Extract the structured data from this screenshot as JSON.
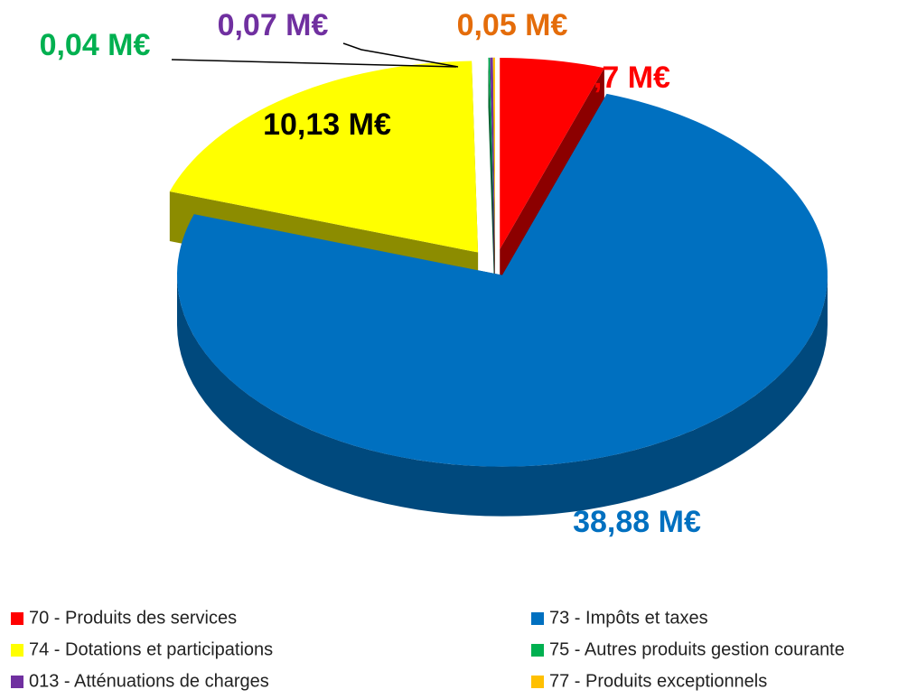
{
  "chart_data": {
    "type": "pie",
    "categories": [
      "70 - Produits des services",
      "73 - Impôts et taxes",
      "74 - Dotations et participations",
      "75 - Autres produits gestion courante",
      "013 - Atténuations de charges",
      "77 - Produits exceptionnels"
    ],
    "values": [
      2.7,
      38.88,
      10.13,
      0.04,
      0.07,
      0.05
    ],
    "value_labels": [
      "2,7 M€",
      "38,88 M€",
      "10,13 M€",
      "0,04 M€",
      "0,07 M€",
      "0,05 M€"
    ],
    "colors": [
      "#ff0000",
      "#0070c0",
      "#ffff00",
      "#00b050",
      "#7030a0",
      "#ffc000"
    ],
    "label_colors": [
      "#ff0000",
      "#0070c0",
      "#000000",
      "#00b050",
      "#7030a0",
      "#e46c0a"
    ],
    "legend": "bottom"
  }
}
